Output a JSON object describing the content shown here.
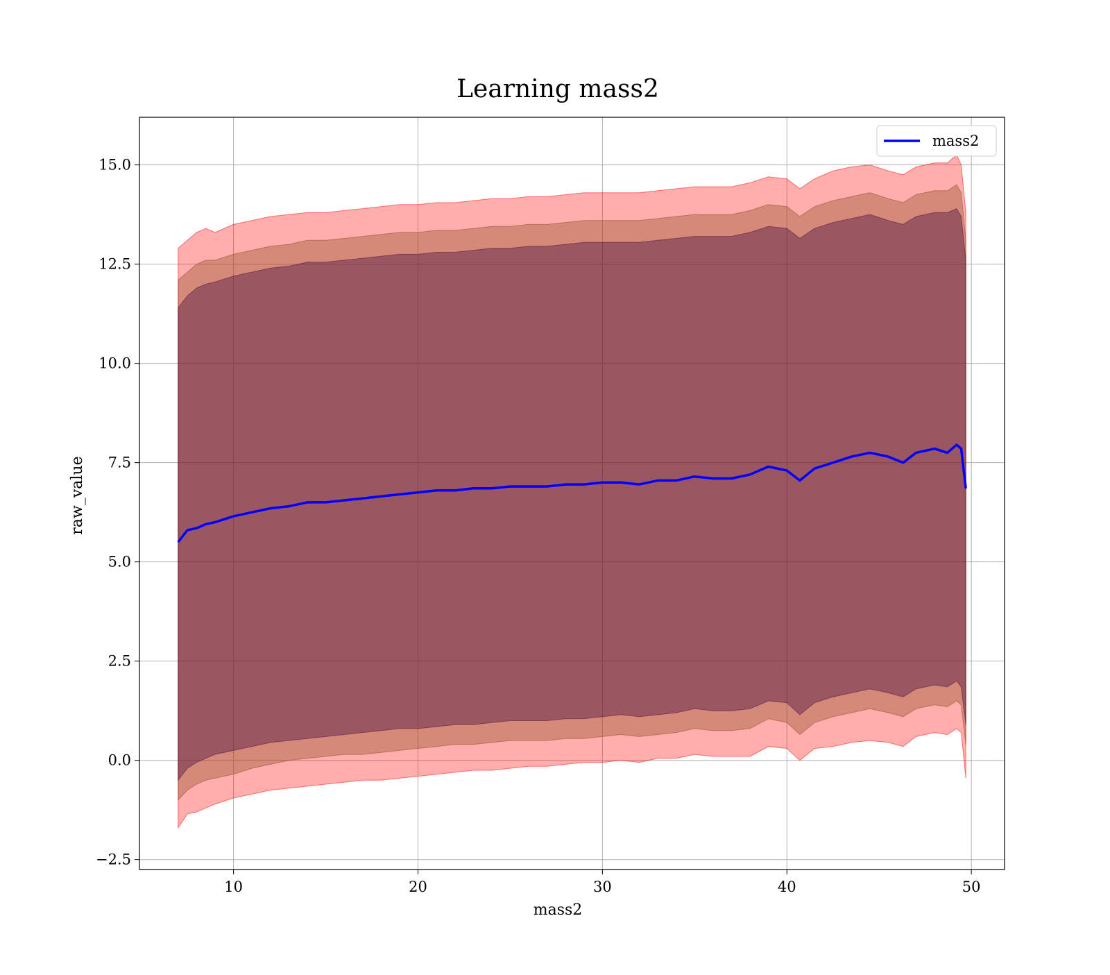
{
  "chart_data": {
    "type": "line",
    "title": "Learning mass2",
    "xlabel": "mass2",
    "ylabel": "raw_value",
    "xlim": [
      4.9,
      51.8
    ],
    "ylim": [
      -2.75,
      16.2
    ],
    "xticks": [
      10,
      20,
      30,
      40,
      50
    ],
    "xtick_labels": [
      "10",
      "20",
      "30",
      "40",
      "50"
    ],
    "yticks": [
      -2.5,
      0.0,
      2.5,
      5.0,
      7.5,
      10.0,
      12.5,
      15.0
    ],
    "ytick_labels": [
      "−2.5",
      "0.0",
      "2.5",
      "5.0",
      "7.5",
      "10.0",
      "12.5",
      "15.0"
    ],
    "grid": true,
    "legend_position": "top-right",
    "series": [
      {
        "name": "mass2",
        "color": "#0000ff",
        "x": [
          7.0,
          7.5,
          8.0,
          8.5,
          9.0,
          10.0,
          11.0,
          12.0,
          13.0,
          14.0,
          15.0,
          16.0,
          17.0,
          18.0,
          19.0,
          20.0,
          21.0,
          22.0,
          23.0,
          24.0,
          25.0,
          26.0,
          27.0,
          28.0,
          29.0,
          30.0,
          31.0,
          32.0,
          33.0,
          34.0,
          35.0,
          36.0,
          37.0,
          38.0,
          39.0,
          40.0,
          40.7,
          41.5,
          42.5,
          43.5,
          44.5,
          45.5,
          46.3,
          47.0,
          48.0,
          48.7,
          49.2,
          49.45,
          49.7
        ],
        "y": [
          5.5,
          5.8,
          5.85,
          5.95,
          6.0,
          6.15,
          6.25,
          6.35,
          6.4,
          6.5,
          6.5,
          6.55,
          6.6,
          6.65,
          6.7,
          6.75,
          6.8,
          6.8,
          6.85,
          6.85,
          6.9,
          6.9,
          6.9,
          6.95,
          6.95,
          7.0,
          7.0,
          6.95,
          7.05,
          7.05,
          7.15,
          7.1,
          7.1,
          7.2,
          7.4,
          7.3,
          7.05,
          7.35,
          7.5,
          7.65,
          7.75,
          7.65,
          7.5,
          7.75,
          7.85,
          7.75,
          7.95,
          7.85,
          6.85
        ]
      }
    ],
    "bands": [
      {
        "name": "outer",
        "color": "#ff0000",
        "opacity": 0.32,
        "lower": [
          -1.7,
          -1.35,
          -1.3,
          -1.2,
          -1.1,
          -0.95,
          -0.85,
          -0.75,
          -0.7,
          -0.65,
          -0.6,
          -0.55,
          -0.5,
          -0.5,
          -0.45,
          -0.4,
          -0.35,
          -0.3,
          -0.25,
          -0.25,
          -0.2,
          -0.15,
          -0.15,
          -0.1,
          -0.05,
          -0.05,
          0.0,
          -0.05,
          0.05,
          0.05,
          0.15,
          0.1,
          0.1,
          0.1,
          0.35,
          0.3,
          0.0,
          0.3,
          0.35,
          0.45,
          0.5,
          0.45,
          0.35,
          0.6,
          0.7,
          0.65,
          0.8,
          0.7,
          -0.45
        ],
        "upper": [
          12.9,
          13.1,
          13.3,
          13.4,
          13.3,
          13.5,
          13.6,
          13.7,
          13.75,
          13.8,
          13.8,
          13.85,
          13.9,
          13.95,
          14.0,
          14.0,
          14.05,
          14.05,
          14.1,
          14.15,
          14.15,
          14.2,
          14.2,
          14.25,
          14.3,
          14.3,
          14.3,
          14.3,
          14.35,
          14.4,
          14.45,
          14.45,
          14.45,
          14.55,
          14.7,
          14.65,
          14.4,
          14.65,
          14.85,
          14.95,
          15.0,
          14.85,
          14.75,
          14.95,
          15.05,
          15.05,
          15.25,
          15.0,
          13.8
        ]
      },
      {
        "name": "middle",
        "color": "#8b4a1e",
        "opacity": 0.36,
        "lower": [
          -1.0,
          -0.75,
          -0.6,
          -0.5,
          -0.45,
          -0.35,
          -0.2,
          -0.1,
          0.0,
          0.05,
          0.1,
          0.15,
          0.15,
          0.2,
          0.25,
          0.3,
          0.35,
          0.4,
          0.4,
          0.45,
          0.5,
          0.5,
          0.5,
          0.55,
          0.55,
          0.6,
          0.65,
          0.6,
          0.65,
          0.7,
          0.8,
          0.75,
          0.75,
          0.8,
          1.05,
          0.95,
          0.65,
          0.95,
          1.1,
          1.2,
          1.3,
          1.2,
          1.1,
          1.3,
          1.4,
          1.35,
          1.5,
          1.4,
          0.4
        ],
        "upper": [
          12.1,
          12.3,
          12.5,
          12.6,
          12.6,
          12.75,
          12.85,
          12.95,
          13.0,
          13.1,
          13.1,
          13.15,
          13.2,
          13.25,
          13.3,
          13.3,
          13.35,
          13.35,
          13.4,
          13.45,
          13.45,
          13.5,
          13.5,
          13.55,
          13.6,
          13.6,
          13.6,
          13.6,
          13.65,
          13.7,
          13.75,
          13.75,
          13.75,
          13.85,
          14.0,
          13.95,
          13.7,
          13.95,
          14.1,
          14.2,
          14.3,
          14.15,
          14.05,
          14.25,
          14.35,
          14.35,
          14.5,
          14.3,
          13.1
        ]
      },
      {
        "name": "inner",
        "color": "#4a1040",
        "opacity": 0.42,
        "lower": [
          -0.5,
          -0.2,
          -0.05,
          0.05,
          0.15,
          0.25,
          0.35,
          0.45,
          0.5,
          0.55,
          0.6,
          0.65,
          0.7,
          0.75,
          0.8,
          0.8,
          0.85,
          0.9,
          0.9,
          0.95,
          1.0,
          1.0,
          1.0,
          1.05,
          1.05,
          1.1,
          1.15,
          1.1,
          1.15,
          1.2,
          1.3,
          1.25,
          1.25,
          1.3,
          1.5,
          1.45,
          1.15,
          1.45,
          1.6,
          1.7,
          1.8,
          1.7,
          1.6,
          1.8,
          1.9,
          1.85,
          2.0,
          1.85,
          0.9
        ],
        "upper": [
          11.4,
          11.7,
          11.9,
          12.0,
          12.05,
          12.2,
          12.3,
          12.4,
          12.45,
          12.55,
          12.55,
          12.6,
          12.65,
          12.7,
          12.75,
          12.75,
          12.8,
          12.8,
          12.85,
          12.9,
          12.9,
          12.95,
          12.95,
          13.0,
          13.05,
          13.05,
          13.05,
          13.05,
          13.1,
          13.15,
          13.2,
          13.2,
          13.2,
          13.3,
          13.45,
          13.4,
          13.15,
          13.4,
          13.55,
          13.65,
          13.75,
          13.6,
          13.5,
          13.7,
          13.8,
          13.8,
          13.9,
          13.7,
          12.6
        ]
      }
    ]
  }
}
